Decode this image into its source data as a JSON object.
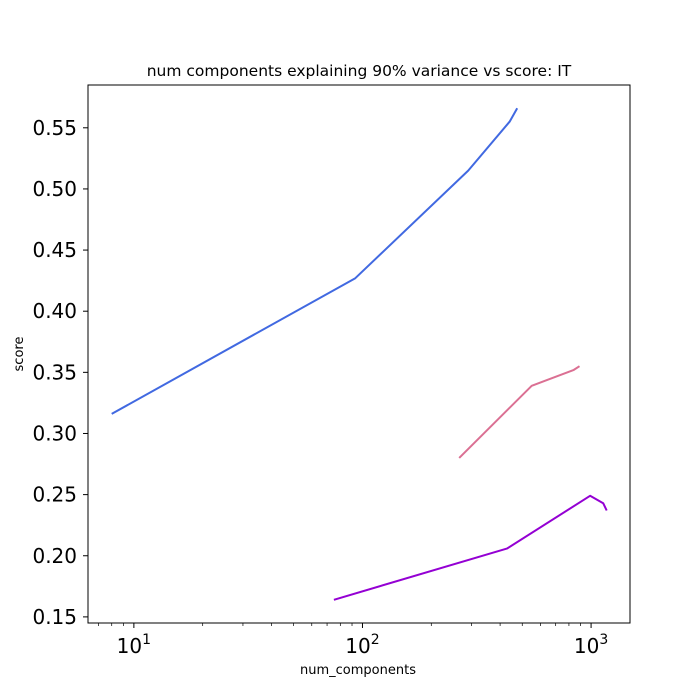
{
  "chart_data": {
    "type": "line",
    "title": "num components explaining 90% variance vs score: IT",
    "xlabel": "num_components",
    "ylabel": "score",
    "xscale": "log",
    "xlim": [
      6.3,
      1480
    ],
    "ylim": [
      0.145,
      0.585
    ],
    "grid": false,
    "x_tick_labels": [
      {
        "value": 10,
        "base": "10",
        "exp": "1"
      },
      {
        "value": 100,
        "base": "10",
        "exp": "2"
      },
      {
        "value": 1000,
        "base": "10",
        "exp": "3"
      }
    ],
    "y_ticks": [
      0.15,
      0.2,
      0.25,
      0.3,
      0.35,
      0.4,
      0.45,
      0.5,
      0.55
    ],
    "y_tick_labels": [
      "0.15",
      "0.20",
      "0.25",
      "0.30",
      "0.35",
      "0.40",
      "0.45",
      "0.50",
      "0.55"
    ],
    "series": [
      {
        "color": "#4169e1",
        "x": [
          8,
          93,
          290,
          440,
          475
        ],
        "y": [
          0.316,
          0.427,
          0.515,
          0.555,
          0.566
        ]
      },
      {
        "color": "#db7093",
        "x": [
          265,
          550,
          840,
          890
        ],
        "y": [
          0.28,
          0.339,
          0.352,
          0.355
        ]
      },
      {
        "color": "#9400d3",
        "x": [
          75,
          430,
          990,
          1130,
          1170
        ],
        "y": [
          0.164,
          0.206,
          0.249,
          0.243,
          0.237
        ]
      }
    ]
  }
}
